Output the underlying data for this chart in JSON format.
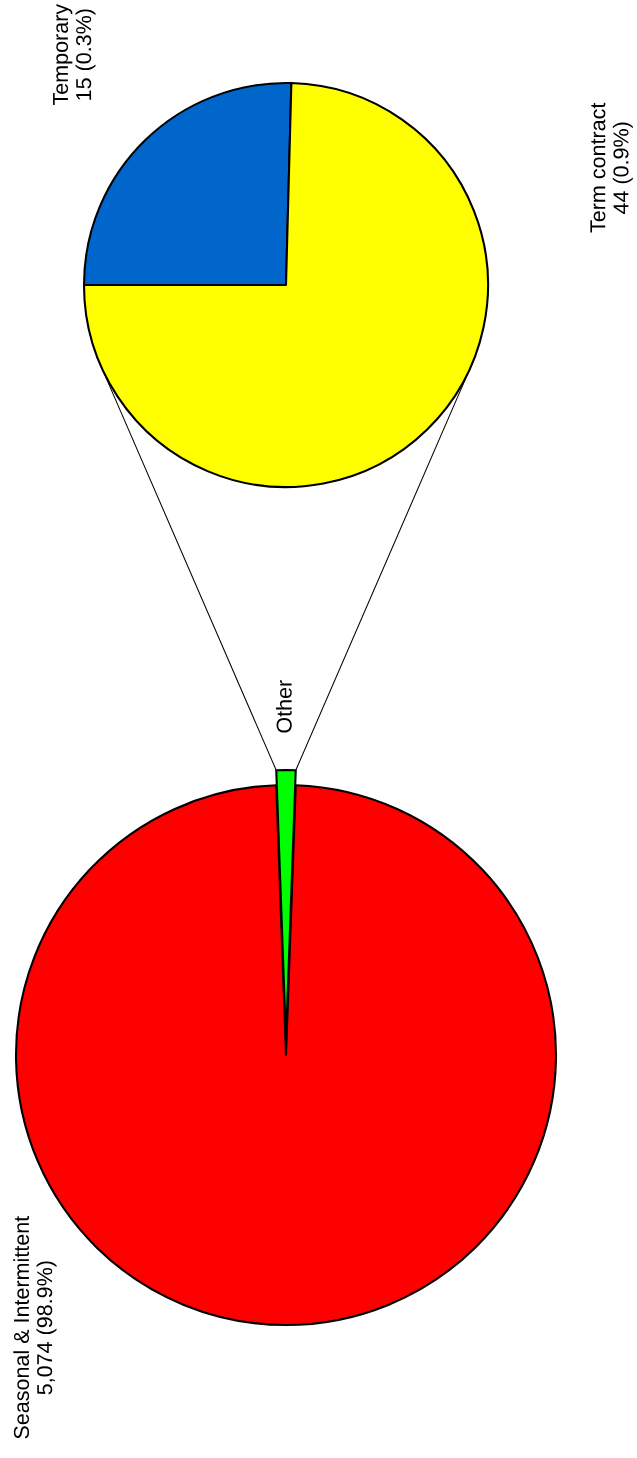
{
  "chart_data": [
    {
      "type": "pie",
      "categories": [
        "Seasonal & Intermittent",
        "Other"
      ],
      "values": [
        5074,
        59
      ],
      "colors": [
        "#ff0000",
        "#00ff00"
      ],
      "value_labels": [
        "5,074 (98.9%)",
        null
      ]
    },
    {
      "type": "pie",
      "categories": [
        "Temporary",
        "Term contract"
      ],
      "values": [
        15,
        44
      ],
      "colors": [
        "#0066cc",
        "#ffff00"
      ],
      "value_labels": [
        "15 (0.3%)",
        "44 (0.9%)"
      ]
    }
  ]
}
